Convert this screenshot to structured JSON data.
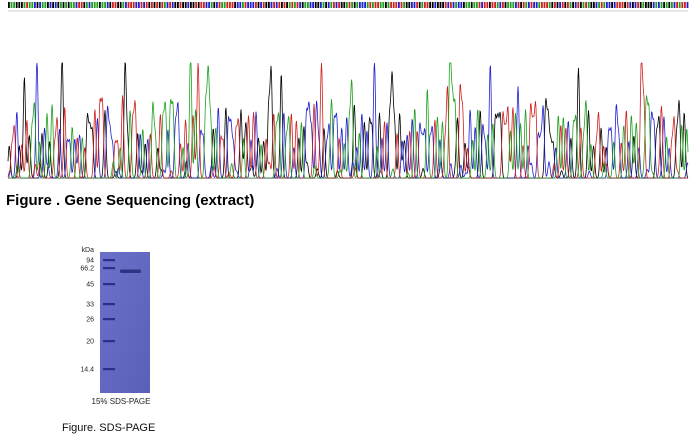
{
  "sequencing": {
    "caption": "Figure . Gene Sequencing (extract)"
  },
  "gel": {
    "unit": "kDa",
    "markers": [
      "94",
      "66.2",
      "45",
      "33",
      "26",
      "20",
      "14.4"
    ],
    "label": "15% SDS-PAGE",
    "caption": "Figure. SDS-PAGE"
  }
}
